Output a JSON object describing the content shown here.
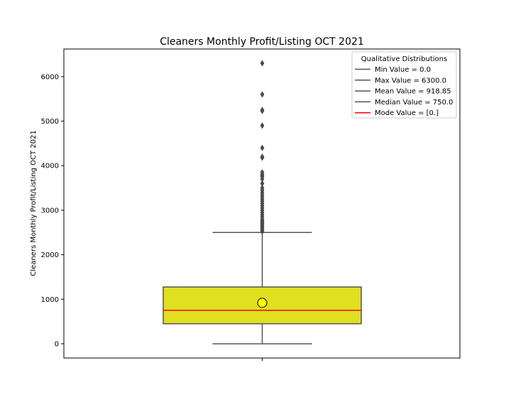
{
  "chart_data": {
    "type": "box",
    "title": "Cleaners Monthly Profit/Listing OCT 2021",
    "xlabel": "",
    "ylabel": "Cleaners Monthly Profit/Listing OCT 2021",
    "ylim": [
      -320,
      6620
    ],
    "yticks": [
      0,
      1000,
      2000,
      3000,
      4000,
      5000,
      6000
    ],
    "grid": false,
    "box": {
      "whisker_low": 0,
      "q1": 450,
      "median": 750,
      "q3": 1275,
      "whisker_high": 2500,
      "mean": 918.85,
      "mode": 0,
      "fill_color": "#e0e020",
      "median_color": "#ff0000",
      "mean_marker_color": "#ffff00",
      "line_color": "#555555"
    },
    "outliers": [
      6300,
      5600,
      5250,
      5230,
      4900,
      4400,
      4200,
      4180,
      3850,
      3800,
      3780,
      3750,
      3700,
      3600,
      3500,
      3450,
      3400,
      3350,
      3300,
      3250,
      3200,
      3150,
      3100,
      3050,
      3000,
      2950,
      2900,
      2850,
      2800,
      2780,
      2750,
      2720,
      2700,
      2680,
      2650,
      2620,
      2600,
      2580,
      2550,
      2520
    ],
    "legend": {
      "title": "Qualitative Distributions",
      "placement": "top-right",
      "entries": [
        {
          "label": "Min Value = 0.0",
          "color": "#555555"
        },
        {
          "label": "Max Value = 6300.0",
          "color": "#555555"
        },
        {
          "label": "Mean Value = 918.85",
          "color": "#555555"
        },
        {
          "label": "Median Value = 750.0",
          "color": "#555555"
        },
        {
          "label": "Mode Value = [0.]",
          "color": "#ff0000"
        }
      ]
    }
  }
}
